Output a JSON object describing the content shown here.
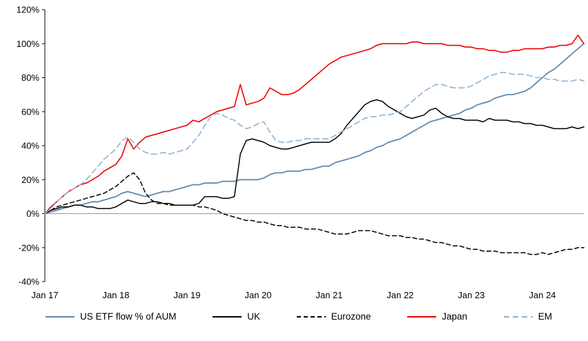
{
  "chart_data": {
    "type": "line",
    "title": "",
    "grid": "none",
    "legend_position": "bottom",
    "axis_color": "#000000",
    "zero_line_color": "#9a9a9a",
    "y_axis": {
      "min": -40,
      "max": 120,
      "step": 20,
      "tick_values": [
        120,
        100,
        80,
        60,
        40,
        20,
        0,
        -20,
        -40
      ],
      "tick_labels": [
        "120%",
        "100%",
        "80%",
        "60%",
        "40%",
        "20%",
        "0%",
        "-20%",
        "-40%"
      ]
    },
    "x_axis": {
      "tick_labels": [
        "Jan 17",
        "Jan 18",
        "Jan 19",
        "Jan 20",
        "Jan 21",
        "Jan 22",
        "Jan 23",
        "Jan 24"
      ],
      "tick_month_indices": [
        0,
        12,
        24,
        36,
        48,
        60,
        72,
        84
      ],
      "total_months": 91
    },
    "series": [
      {
        "name": "US ETF flow % of AUM",
        "color": "#5f8ab0",
        "style": "solid",
        "dash": null,
        "width": 1.8,
        "values": [
          0,
          1,
          2,
          3,
          4,
          5,
          5,
          6,
          7,
          7,
          8,
          9,
          10,
          12,
          13,
          12,
          11,
          10,
          11,
          12,
          13,
          13,
          14,
          15,
          16,
          17,
          17,
          18,
          18,
          18,
          19,
          19,
          19,
          20,
          20,
          20,
          20,
          21,
          23,
          24,
          24,
          25,
          25,
          25,
          26,
          26,
          27,
          28,
          28,
          30,
          31,
          32,
          33,
          34,
          36,
          37,
          39,
          40,
          42,
          43,
          44,
          46,
          48,
          50,
          52,
          54,
          55,
          56,
          57,
          58,
          59,
          61,
          62,
          64,
          65,
          66,
          68,
          69,
          70,
          70,
          71,
          72,
          74,
          77,
          80,
          83,
          85,
          88,
          91,
          94,
          97,
          100
        ]
      },
      {
        "name": "UK",
        "color": "#000000",
        "style": "solid",
        "dash": null,
        "width": 1.5,
        "values": [
          0,
          2,
          3,
          4,
          4,
          5,
          5,
          4,
          4,
          3,
          3,
          3,
          4,
          6,
          8,
          7,
          6,
          6,
          7,
          7,
          6,
          6,
          5,
          5,
          5,
          5,
          6,
          10,
          10,
          10,
          9,
          9,
          10,
          35,
          43,
          44,
          43,
          42,
          40,
          39,
          38,
          38,
          39,
          40,
          41,
          42,
          42,
          42,
          42,
          44,
          47,
          52,
          56,
          60,
          64,
          66,
          67,
          66,
          63,
          61,
          59,
          57,
          56,
          57,
          58,
          61,
          62,
          59,
          57,
          56,
          56,
          55,
          55,
          55,
          54,
          56,
          55,
          55,
          55,
          54,
          54,
          53,
          53,
          52,
          52,
          51,
          50,
          50,
          50,
          51,
          50,
          51
        ]
      },
      {
        "name": "Eurozone",
        "color": "#000000",
        "style": "dashed",
        "dash": [
          6,
          4
        ],
        "width": 1.5,
        "values": [
          0,
          2,
          4,
          5,
          6,
          7,
          8,
          9,
          10,
          11,
          12,
          14,
          16,
          19,
          22,
          24,
          20,
          12,
          8,
          6,
          6,
          5,
          5,
          5,
          5,
          5,
          4,
          4,
          3,
          2,
          0,
          -1,
          -2,
          -3,
          -4,
          -4,
          -5,
          -5,
          -6,
          -7,
          -7,
          -8,
          -8,
          -8,
          -9,
          -9,
          -9,
          -10,
          -11,
          -12,
          -12,
          -12,
          -11,
          -10,
          -10,
          -10,
          -11,
          -12,
          -13,
          -13,
          -13,
          -14,
          -14,
          -15,
          -15,
          -16,
          -17,
          -17,
          -18,
          -19,
          -19,
          -20,
          -21,
          -21,
          -22,
          -22,
          -22,
          -23,
          -23,
          -23,
          -23,
          -23,
          -24,
          -24,
          -23,
          -24,
          -23,
          -22,
          -21,
          -21,
          -20,
          -20
        ]
      },
      {
        "name": "Japan",
        "color": "#ee0000",
        "style": "solid",
        "dash": null,
        "width": 1.6,
        "values": [
          0,
          4,
          7,
          10,
          13,
          15,
          17,
          18,
          20,
          22,
          25,
          27,
          29,
          34,
          44,
          38,
          42,
          45,
          46,
          47,
          48,
          49,
          50,
          51,
          52,
          55,
          54,
          56,
          58,
          60,
          61,
          62,
          63,
          76,
          64,
          65,
          66,
          68,
          74,
          72,
          70,
          70,
          71,
          73,
          76,
          79,
          82,
          85,
          88,
          90,
          92,
          93,
          94,
          95,
          96,
          97,
          99,
          100,
          100,
          100,
          100,
          100,
          101,
          101,
          100,
          100,
          100,
          100,
          99,
          99,
          99,
          98,
          98,
          97,
          97,
          96,
          96,
          95,
          95,
          96,
          96,
          97,
          97,
          97,
          97,
          98,
          98,
          99,
          99,
          100,
          105,
          100
        ]
      },
      {
        "name": "EM",
        "color": "#8fb2d0",
        "style": "dashed",
        "dash": [
          8,
          5
        ],
        "width": 1.6,
        "values": [
          0,
          3,
          7,
          10,
          13,
          15,
          17,
          20,
          24,
          28,
          32,
          35,
          38,
          43,
          45,
          42,
          38,
          36,
          35,
          35,
          36,
          35,
          36,
          37,
          38,
          42,
          46,
          52,
          57,
          59,
          58,
          56,
          55,
          52,
          50,
          51,
          53,
          54,
          48,
          43,
          42,
          42,
          43,
          43,
          44,
          44,
          44,
          44,
          44,
          46,
          48,
          50,
          52,
          54,
          56,
          57,
          57,
          58,
          58,
          59,
          60,
          63,
          66,
          69,
          72,
          74,
          76,
          76,
          75,
          74,
          74,
          74,
          75,
          77,
          79,
          81,
          82,
          83,
          83,
          82,
          82,
          82,
          81,
          80,
          80,
          79,
          79,
          78,
          78,
          78,
          79,
          78
        ]
      }
    ]
  }
}
